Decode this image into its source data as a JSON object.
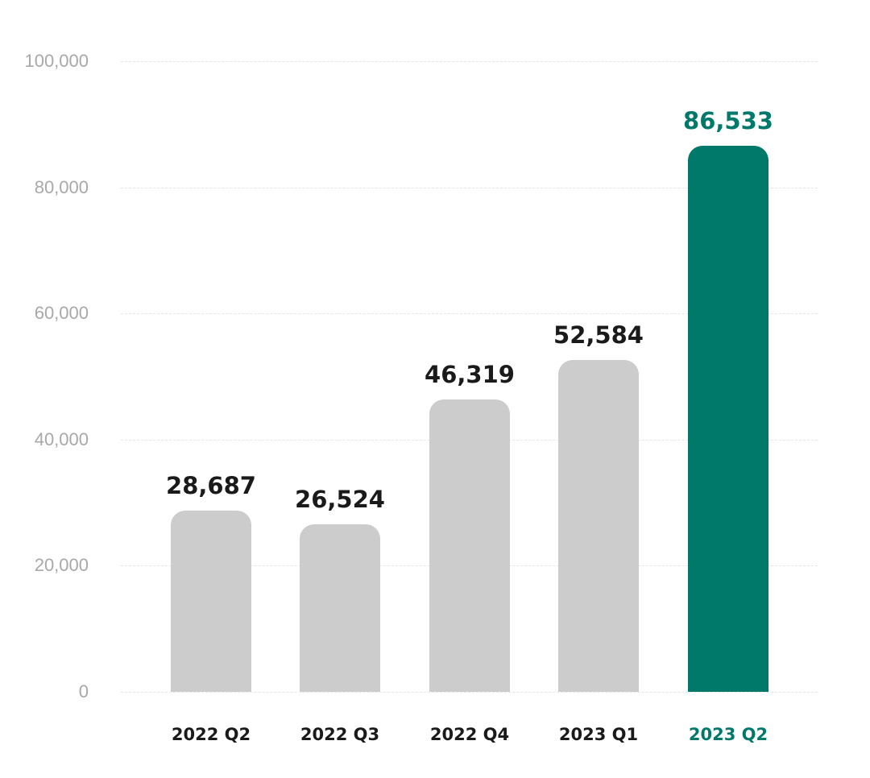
{
  "chart_data": {
    "type": "bar",
    "title": "",
    "xlabel": "",
    "ylabel": "",
    "categories": [
      "2022 Q2",
      "2022 Q3",
      "2022 Q4",
      "2023 Q1",
      "2023 Q2"
    ],
    "values": [
      28687,
      26524,
      46319,
      52584,
      86533
    ],
    "value_labels": [
      "28,687",
      "26,524",
      "46,319",
      "52,584",
      "86,533"
    ],
    "ylim": [
      0,
      100000
    ],
    "yticks": [
      0,
      20000,
      40000,
      60000,
      80000,
      100000
    ],
    "ytick_labels": [
      "0",
      "20,000",
      "40,000",
      "60,000",
      "80,000",
      "100,000"
    ],
    "grid": true,
    "highlight_index": 4,
    "colors": {
      "default_bar": "#cccccc",
      "highlight_bar": "#00796b",
      "highlight_text": "#00796b",
      "text": "#1a1a1a",
      "axis_text": "#a8a8a8",
      "grid": "#e6e6e6"
    }
  }
}
